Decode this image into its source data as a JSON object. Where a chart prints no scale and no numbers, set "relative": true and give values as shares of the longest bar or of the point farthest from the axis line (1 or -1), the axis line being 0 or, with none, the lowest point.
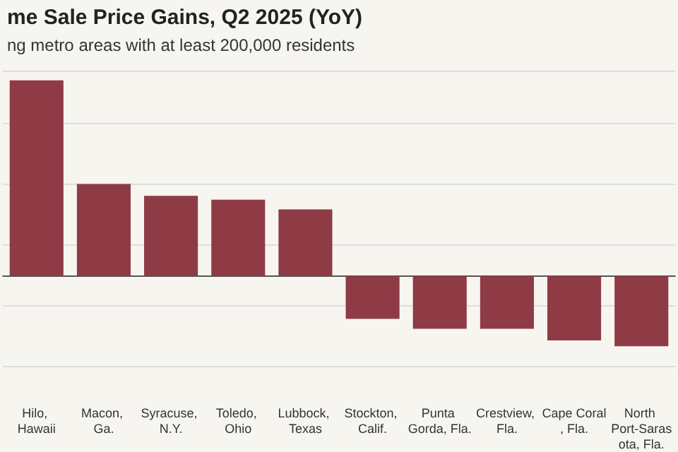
{
  "chart_data": {
    "type": "bar",
    "title": "me Sale Price Gains, Q2 2025 (YoY)",
    "subtitle": "ng metro areas with at least 200,000 residents",
    "categories": [
      "Hilo, Hawaii",
      "Macon, Ga.",
      "Syracuse, N.Y.",
      "Toledo, Ohio",
      "Lubbock, Texas",
      "Stockton, Calif.",
      "Punta Gorda, Fla.",
      "Crestview, Fla.",
      "Cape Coral, Fla.",
      "North Port-Sarasota, Fla."
    ],
    "values": [
      1,
      0.47,
      0.41,
      0.39,
      0.34,
      -0.22,
      -0.27,
      -0.27,
      -0.33,
      -0.36
    ],
    "color": "#8e3b46",
    "relative": true,
    "grid": "y"
  }
}
